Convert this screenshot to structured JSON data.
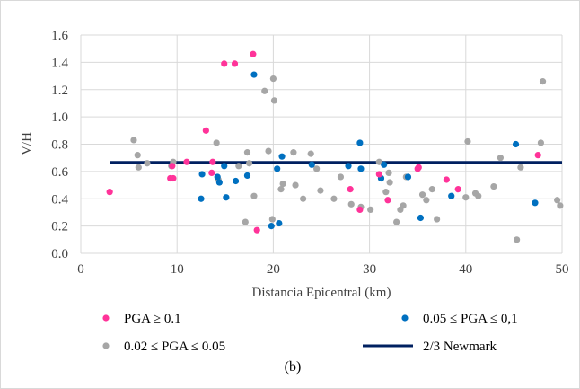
{
  "chart_data": {
    "type": "scatter",
    "caption": "(b)",
    "xlabel": "Distancia Epicentral (km)",
    "ylabel": "V/H",
    "xlim": [
      0,
      50
    ],
    "ylim": [
      0,
      1.6
    ],
    "x_ticks": [
      "0",
      "10",
      "20",
      "30",
      "40",
      "50"
    ],
    "y_ticks": [
      "0.0",
      "0.2",
      "0.4",
      "0.6",
      "0.8",
      "1.0",
      "1.2",
      "1.4",
      "1.6"
    ],
    "grid": true,
    "legend_position": "bottom",
    "series": [
      {
        "name": "PGA ≥ 0.1",
        "color": "#ff3399",
        "points": [
          [
            3.0,
            0.45
          ],
          [
            9.3,
            0.55
          ],
          [
            9.6,
            0.55
          ],
          [
            9.5,
            0.64
          ],
          [
            11.0,
            0.67
          ],
          [
            13.0,
            0.9
          ],
          [
            13.6,
            0.59
          ],
          [
            13.7,
            0.67
          ],
          [
            14.9,
            1.39
          ],
          [
            16.0,
            1.39
          ],
          [
            17.9,
            1.46
          ],
          [
            18.3,
            0.17
          ],
          [
            28.0,
            0.47
          ],
          [
            29.0,
            0.32
          ],
          [
            31.0,
            0.58
          ],
          [
            31.9,
            0.39
          ],
          [
            35.0,
            0.62
          ],
          [
            35.1,
            0.63
          ],
          [
            38.0,
            0.54
          ],
          [
            39.2,
            0.47
          ],
          [
            47.5,
            0.72
          ]
        ]
      },
      {
        "name": "0.05 ≤ PGA ≤ 0,1",
        "color": "#0070c0",
        "points": [
          [
            12.5,
            0.4
          ],
          [
            12.6,
            0.58
          ],
          [
            14.2,
            0.56
          ],
          [
            14.4,
            0.52
          ],
          [
            14.9,
            0.64
          ],
          [
            15.1,
            0.41
          ],
          [
            16.1,
            0.53
          ],
          [
            17.3,
            0.57
          ],
          [
            18.0,
            1.31
          ],
          [
            19.8,
            0.2
          ],
          [
            20.4,
            0.62
          ],
          [
            20.6,
            0.22
          ],
          [
            20.9,
            0.71
          ],
          [
            24.0,
            0.65
          ],
          [
            27.8,
            0.64
          ],
          [
            29.0,
            0.81
          ],
          [
            29.1,
            0.62
          ],
          [
            31.2,
            0.55
          ],
          [
            31.5,
            0.65
          ],
          [
            34.0,
            0.56
          ],
          [
            35.3,
            0.26
          ],
          [
            38.5,
            0.42
          ],
          [
            45.2,
            0.8
          ],
          [
            47.2,
            0.37
          ]
        ]
      },
      {
        "name": "0.02 ≤ PGA ≤ 0.05",
        "color": "#a6a6a6",
        "points": [
          [
            5.5,
            0.83
          ],
          [
            5.9,
            0.72
          ],
          [
            6.0,
            0.63
          ],
          [
            6.9,
            0.66
          ],
          [
            9.4,
            0.64
          ],
          [
            9.6,
            0.67
          ],
          [
            14.1,
            0.81
          ],
          [
            14.3,
            0.54
          ],
          [
            16.4,
            0.64
          ],
          [
            17.1,
            0.23
          ],
          [
            17.3,
            0.74
          ],
          [
            17.5,
            0.66
          ],
          [
            18.0,
            0.42
          ],
          [
            19.1,
            1.19
          ],
          [
            19.5,
            0.75
          ],
          [
            20.0,
            1.28
          ],
          [
            20.1,
            1.12
          ],
          [
            19.9,
            0.25
          ],
          [
            20.8,
            0.47
          ],
          [
            21.0,
            0.51
          ],
          [
            22.1,
            0.74
          ],
          [
            22.3,
            0.5
          ],
          [
            23.1,
            0.4
          ],
          [
            23.9,
            0.73
          ],
          [
            24.5,
            0.62
          ],
          [
            24.9,
            0.46
          ],
          [
            26.3,
            0.4
          ],
          [
            27.0,
            0.56
          ],
          [
            28.1,
            0.36
          ],
          [
            29.1,
            0.34
          ],
          [
            30.1,
            0.32
          ],
          [
            31.0,
            0.67
          ],
          [
            31.2,
            0.55
          ],
          [
            31.7,
            0.45
          ],
          [
            32.0,
            0.59
          ],
          [
            32.1,
            0.52
          ],
          [
            32.8,
            0.23
          ],
          [
            33.2,
            0.32
          ],
          [
            33.5,
            0.35
          ],
          [
            33.8,
            0.56
          ],
          [
            35.5,
            0.43
          ],
          [
            35.9,
            0.39
          ],
          [
            36.5,
            0.47
          ],
          [
            37.0,
            0.25
          ],
          [
            40.0,
            0.41
          ],
          [
            40.2,
            0.82
          ],
          [
            41.0,
            0.44
          ],
          [
            41.3,
            0.42
          ],
          [
            42.9,
            0.49
          ],
          [
            43.6,
            0.7
          ],
          [
            45.3,
            0.1
          ],
          [
            45.7,
            0.63
          ],
          [
            47.8,
            0.81
          ],
          [
            48.0,
            1.26
          ],
          [
            49.5,
            0.39
          ],
          [
            49.8,
            0.35
          ]
        ]
      }
    ],
    "reference_line": {
      "name": "2/3 Newmark",
      "color": "#002060",
      "x": [
        3,
        50
      ],
      "y": [
        0.667,
        0.667
      ]
    }
  }
}
